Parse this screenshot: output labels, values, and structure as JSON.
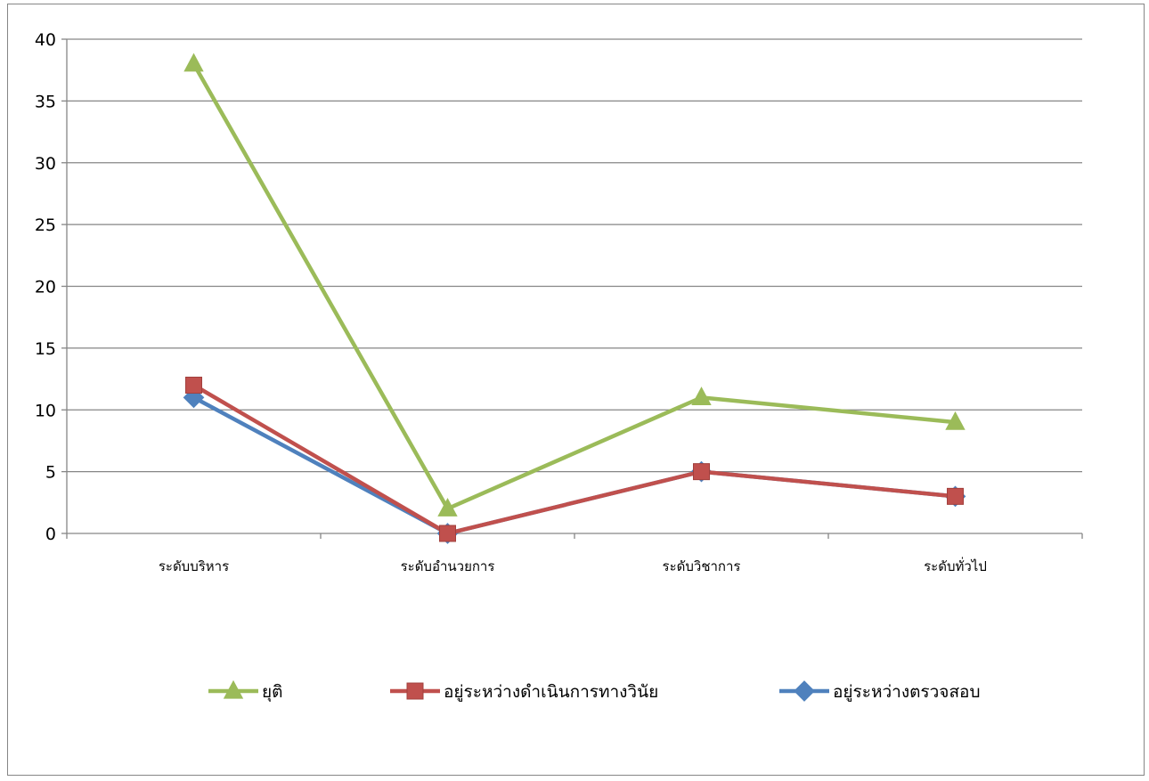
{
  "chart_data": {
    "type": "line",
    "categories": [
      "ระดับบริหาร",
      "ระดับอำนวยการ",
      "ระดับวิชาการ",
      "ระดับทั่วไป"
    ],
    "series": [
      {
        "name": "ยุติ",
        "values": [
          38,
          2,
          11,
          9
        ],
        "color": "#9BBB59",
        "marker": "triangle"
      },
      {
        "name": "อยู่ระหว่างดำเนินการทางวินัย",
        "values": [
          12,
          0,
          5,
          3
        ],
        "color": "#C0504D",
        "marker": "square"
      },
      {
        "name": "อยู่ระหว่างตรวจสอบ",
        "values": [
          11,
          0,
          5,
          3
        ],
        "color": "#4F81BD",
        "marker": "diamond"
      }
    ],
    "ylim": [
      0,
      40
    ],
    "yticks": [
      0,
      5,
      10,
      15,
      20,
      25,
      30,
      35,
      40
    ],
    "grid": true,
    "legend_position": "bottom",
    "title": "",
    "xlabel": "",
    "ylabel": ""
  }
}
